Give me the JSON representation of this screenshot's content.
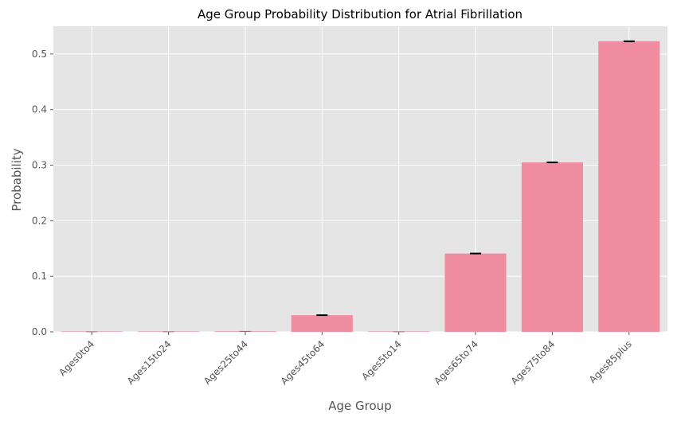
{
  "chart_data": {
    "type": "bar",
    "title": "Age Group Probability Distribution for Atrial Fibrillation",
    "xlabel": "Age Group",
    "ylabel": "Probability",
    "categories": [
      "Ages0to4",
      "Ages15to24",
      "Ages25to44",
      "Ages45to64",
      "Ages5to14",
      "Ages65to74",
      "Ages75to84",
      "Ages85plus"
    ],
    "values": [
      0.0,
      0.0,
      0.001,
      0.03,
      0.0,
      0.141,
      0.305,
      0.523
    ],
    "error_bars": true,
    "ylim": [
      0,
      0.55
    ],
    "yticks": [
      "0.0",
      "0.1",
      "0.2",
      "0.3",
      "0.4",
      "0.5"
    ],
    "ytick_values": [
      0,
      0.1,
      0.2,
      0.3,
      0.4,
      0.5
    ],
    "grid": true,
    "colors": {
      "bar": "#f08ca0",
      "background": "#e5e5e5",
      "grid": "#ffffff",
      "errorbar": "#000000"
    }
  }
}
